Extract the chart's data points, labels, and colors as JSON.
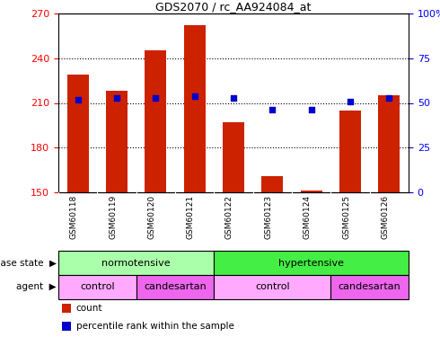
{
  "title": "GDS2070 / rc_AA924084_at",
  "samples": [
    "GSM60118",
    "GSM60119",
    "GSM60120",
    "GSM60121",
    "GSM60122",
    "GSM60123",
    "GSM60124",
    "GSM60125",
    "GSM60126"
  ],
  "counts": [
    229,
    218,
    245,
    262,
    197,
    161,
    151,
    205,
    215
  ],
  "percentiles": [
    52,
    53,
    53,
    54,
    53,
    46,
    46,
    51,
    53
  ],
  "ylim_left": [
    150,
    270
  ],
  "ylim_right": [
    0,
    100
  ],
  "yticks_left": [
    150,
    180,
    210,
    240,
    270
  ],
  "yticks_right": [
    0,
    25,
    50,
    75,
    100
  ],
  "bar_color": "#cc2200",
  "dot_color": "#0000cc",
  "disease_state_groups": [
    {
      "label": "normotensive",
      "start": 0,
      "end": 4,
      "color": "#aaffaa"
    },
    {
      "label": "hypertensive",
      "start": 4,
      "end": 9,
      "color": "#44ee44"
    }
  ],
  "agent_groups": [
    {
      "label": "control",
      "start": 0,
      "end": 2,
      "color": "#ffaaff"
    },
    {
      "label": "candesartan",
      "start": 2,
      "end": 4,
      "color": "#ee66ee"
    },
    {
      "label": "control",
      "start": 4,
      "end": 7,
      "color": "#ffaaff"
    },
    {
      "label": "candesartan",
      "start": 7,
      "end": 9,
      "color": "#ee66ee"
    }
  ],
  "legend_items": [
    {
      "label": "count",
      "color": "#cc2200"
    },
    {
      "label": "percentile rank within the sample",
      "color": "#0000cc"
    }
  ]
}
